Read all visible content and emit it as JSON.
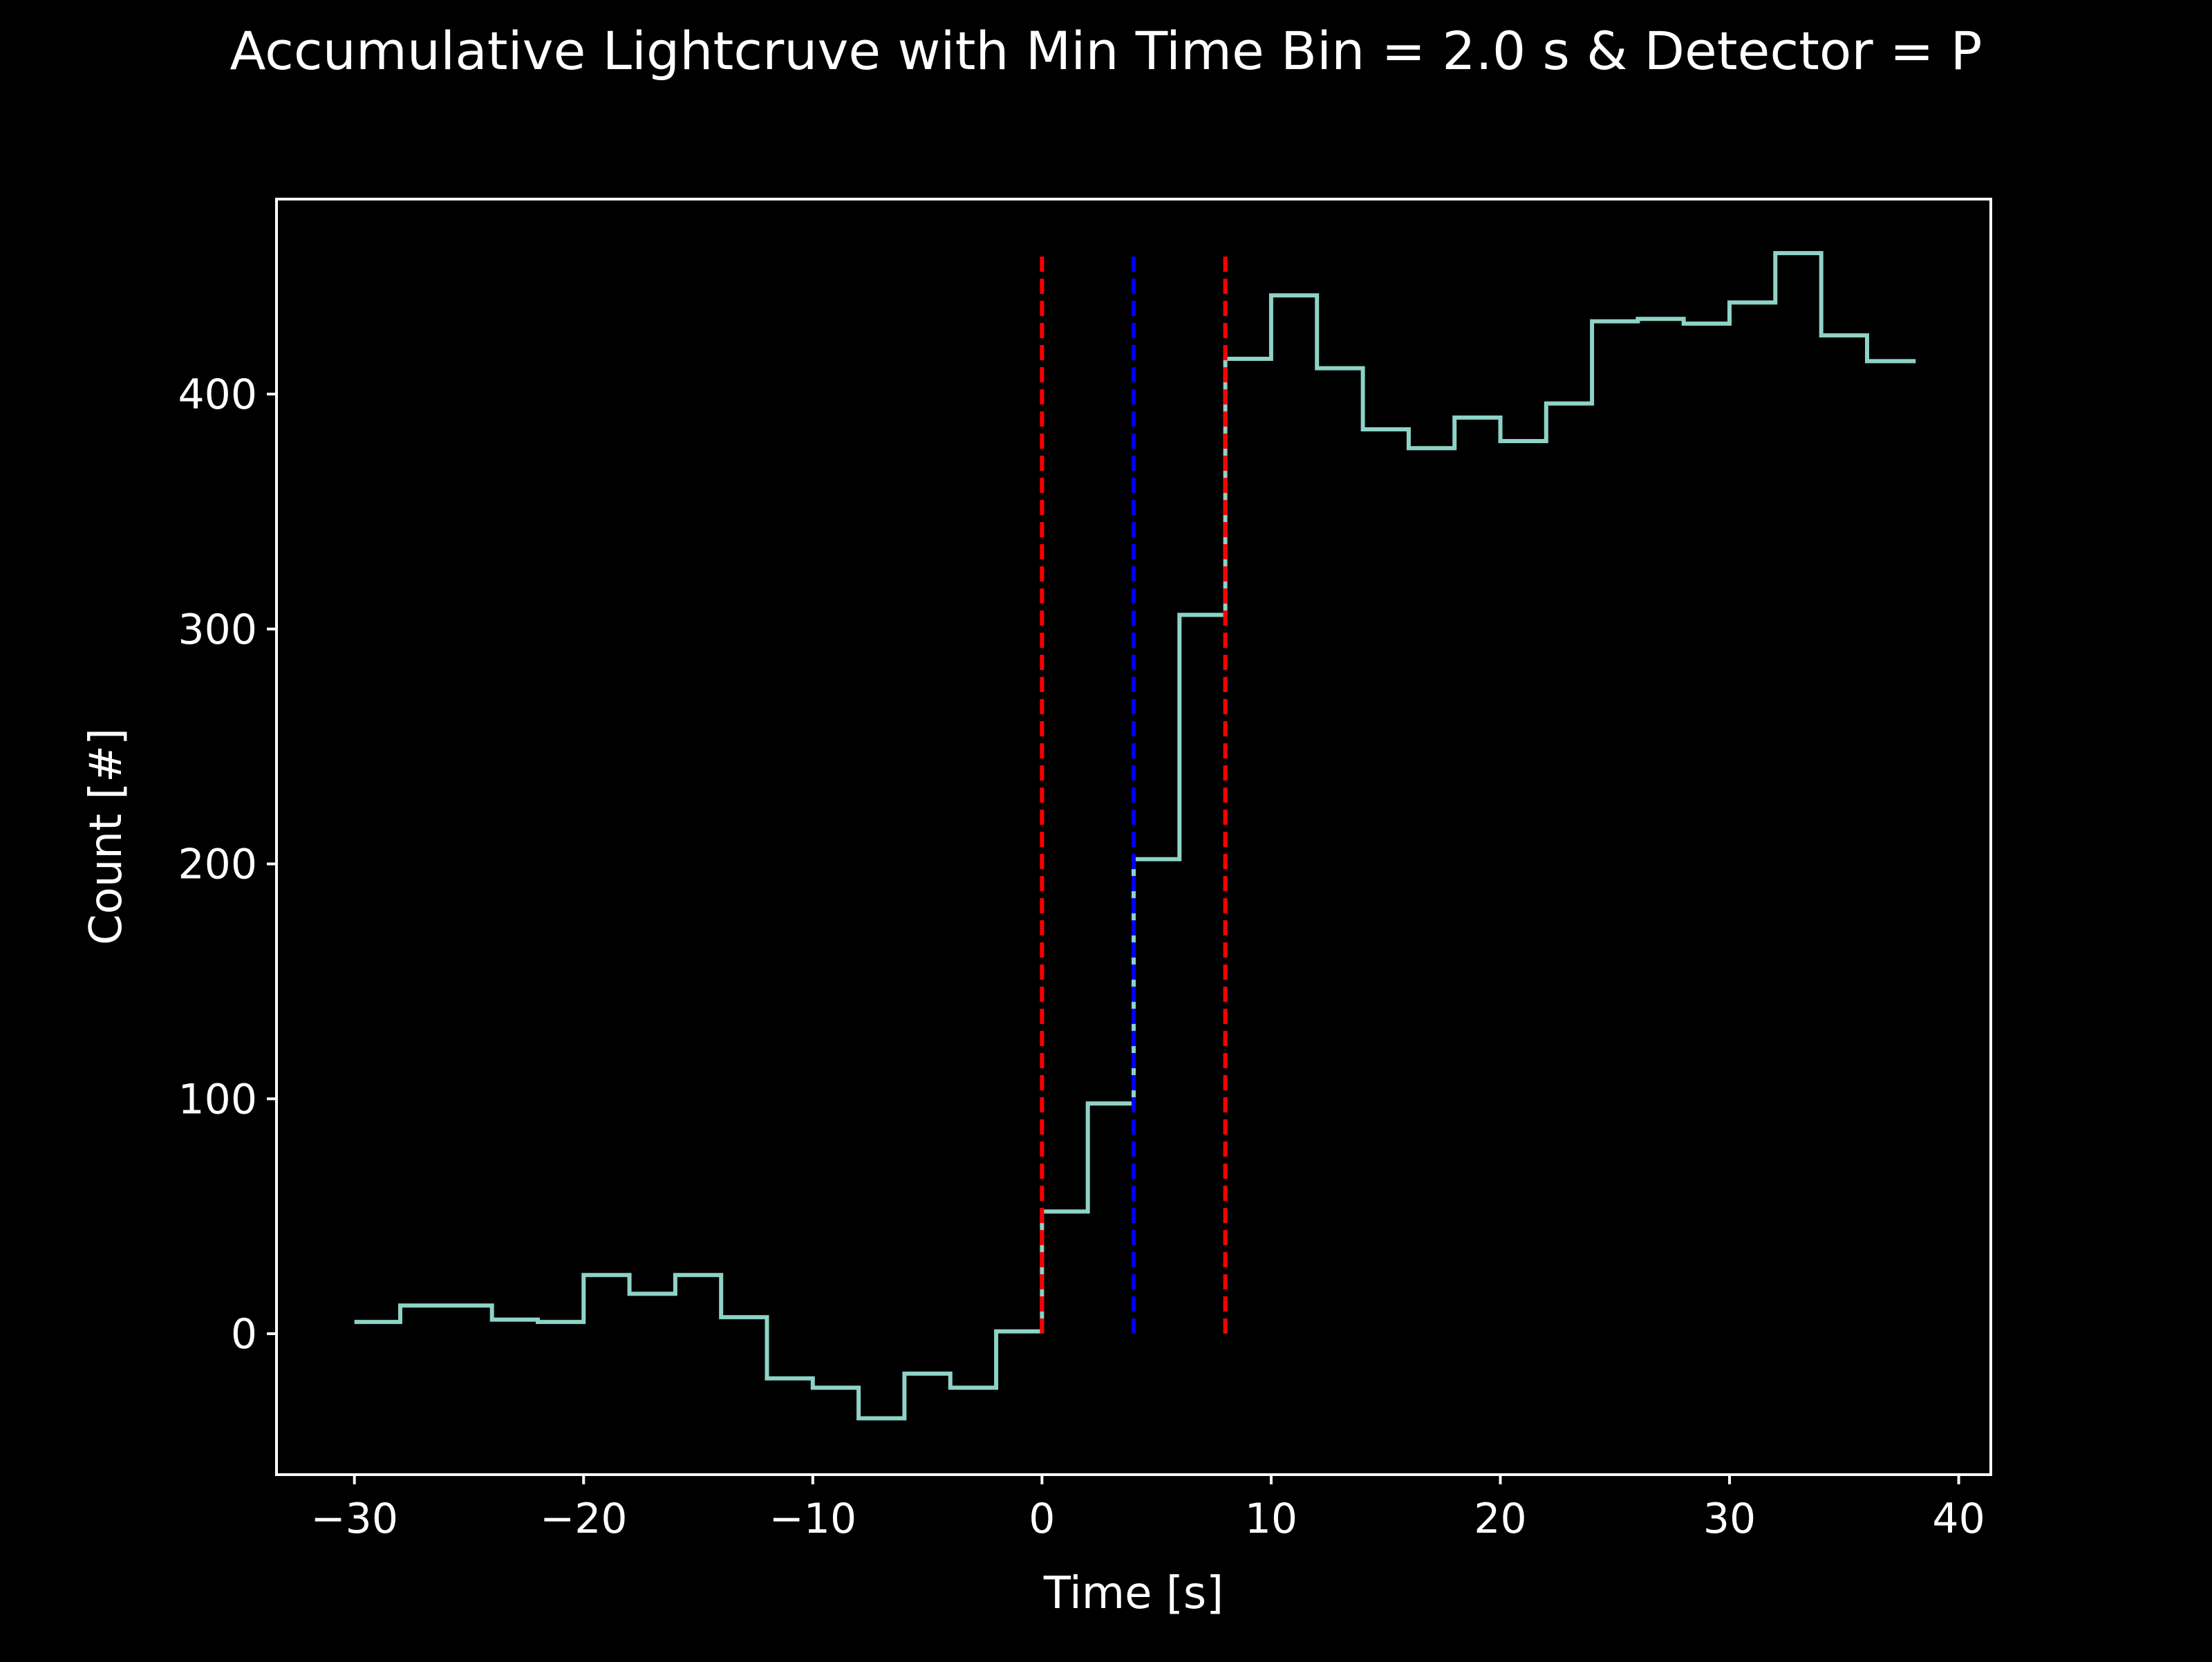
{
  "chart_data": {
    "type": "line",
    "step": "post",
    "title": "Accumulative Lightcruve with Min Time Bin = 2.0 s & Detector = P",
    "xlabel": "Time [s]",
    "ylabel": "Count [#]",
    "xlim": [
      -33.4,
      41.4
    ],
    "ylim": [
      -60,
      483
    ],
    "xticks": [
      -30,
      -20,
      -10,
      0,
      10,
      20,
      30,
      40
    ],
    "xtick_labels": [
      "−30",
      "−20",
      "−10",
      "0",
      "10",
      "20",
      "30",
      "40"
    ],
    "yticks": [
      0,
      100,
      200,
      300,
      400
    ],
    "ytick_labels": [
      "0",
      "100",
      "200",
      "300",
      "400"
    ],
    "grid": false,
    "background": "#000000",
    "axis_color": "#ffffff",
    "series": [
      {
        "color": "#8dd3c7",
        "x": [
          -30,
          -28,
          -26,
          -24,
          -22,
          -20,
          -18,
          -16,
          -14,
          -12,
          -10,
          -8,
          -6,
          -4,
          -2,
          0,
          2,
          4,
          6,
          8,
          10,
          12,
          14,
          16,
          18,
          20,
          22,
          24,
          26,
          28,
          30,
          32,
          34,
          36,
          38
        ],
        "y": [
          5,
          12,
          12,
          6,
          5,
          25,
          17,
          25,
          7,
          -19,
          -23,
          -36,
          -17,
          -23,
          1,
          52,
          98,
          202,
          306,
          415,
          442,
          411,
          385,
          377,
          390,
          380,
          396,
          431,
          432,
          430,
          439,
          460,
          425,
          414,
          414
        ]
      }
    ],
    "vlines": [
      {
        "x": 0,
        "ymin": 0,
        "ymax": 460,
        "color": "#ff0000",
        "style": "dashed"
      },
      {
        "x": 4,
        "ymin": 0,
        "ymax": 460,
        "color": "#0000ff",
        "style": "dashed"
      },
      {
        "x": 8,
        "ymin": 0,
        "ymax": 460,
        "color": "#ff0000",
        "style": "dashed"
      }
    ]
  }
}
